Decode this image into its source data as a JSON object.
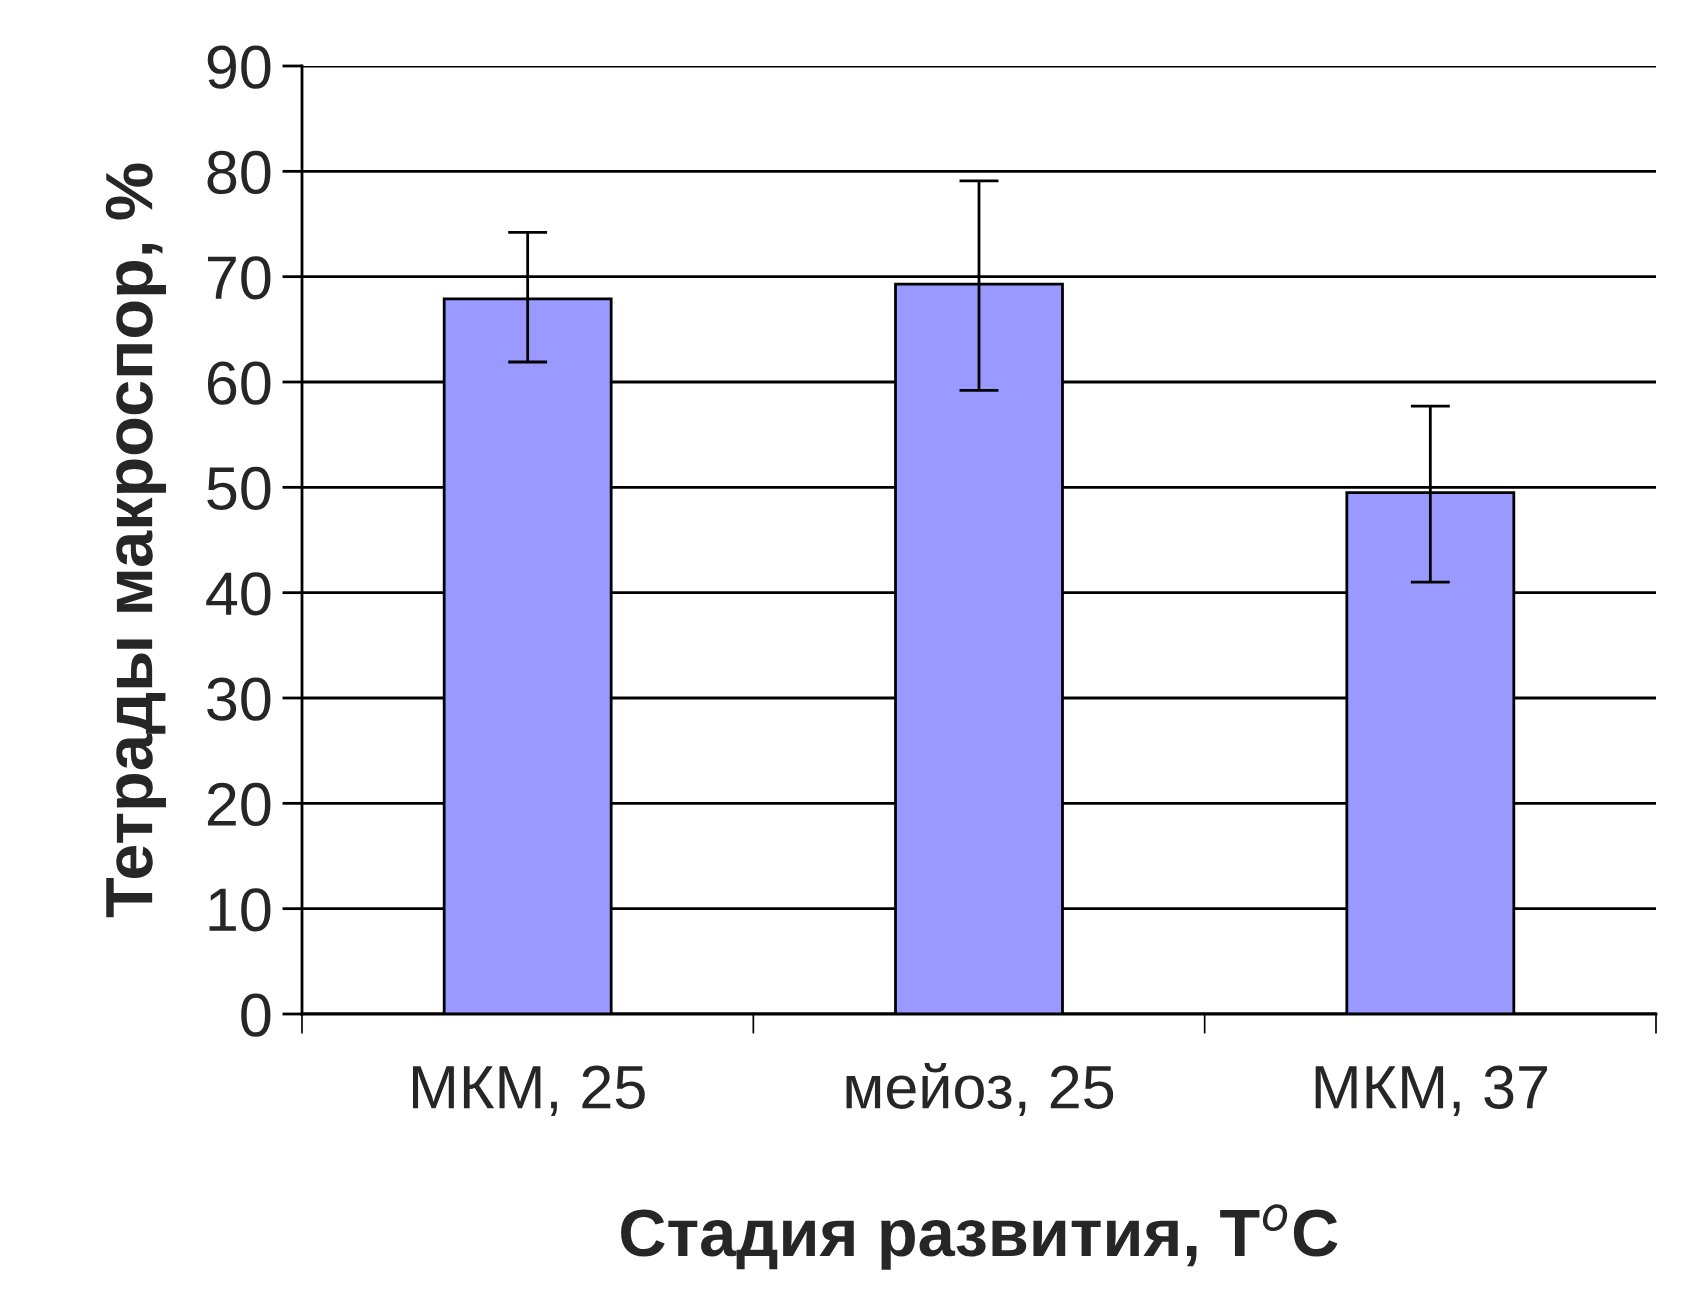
{
  "chart_data": {
    "type": "bar",
    "xlabel": "Стадия развития, T$^{o}$C",
    "ylabel": "Тетрады макроспор, %",
    "categories": [
      "МКМ, 25",
      "мейоз, 25",
      "МКМ, 37"
    ],
    "values": [
      67.9,
      69.3,
      49.5
    ],
    "errors": [
      [
        61.9,
        74.2
      ],
      [
        59.2,
        79.1
      ],
      [
        41.0,
        57.7
      ]
    ],
    "color": "#9999ff",
    "ylim": [
      0,
      90
    ],
    "yticks": [
      0,
      10,
      20,
      30,
      40,
      50,
      60,
      70,
      80,
      90
    ],
    "grid": "y"
  }
}
